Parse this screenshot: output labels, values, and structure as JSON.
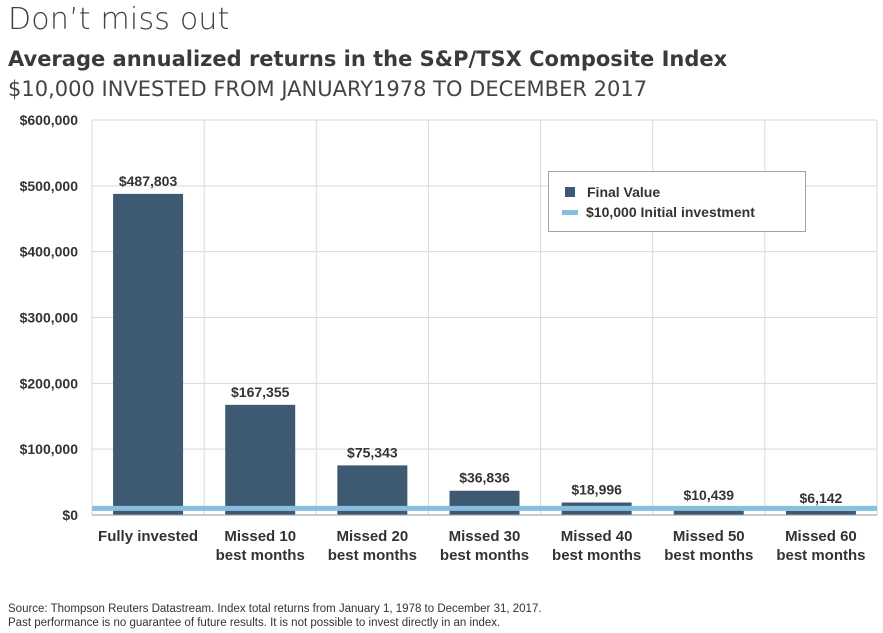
{
  "header": {
    "heading": "Don’t miss out",
    "title": "Average annualized returns in the S&P/TSX Composite Index",
    "subtitle": "$10,000 INVESTED FROM JANUARY1978 TO DECEMBER 2017"
  },
  "legend": {
    "final_value": "Final Value",
    "initial_investment": "$10,000 Initial investment"
  },
  "footnotes": {
    "line1": "Source: Thompson Reuters Datastream. Index total returns from January 1, 1978 to December 31, 2017.",
    "line2": "Past performance is no guarantee of future results. It is not possible to invest directly in an index."
  },
  "colors": {
    "bar": "#3e5a72",
    "initial_line": "#86bfe0",
    "grid": "#d9d9d9"
  },
  "chart_data": {
    "type": "bar",
    "categories": [
      [
        "Fully invested"
      ],
      [
        "Missed 10",
        "best months"
      ],
      [
        "Missed 20",
        "best months"
      ],
      [
        "Missed 30",
        "best months"
      ],
      [
        "Missed 40",
        "best months"
      ],
      [
        "Missed 50",
        "best months"
      ],
      [
        "Missed 60",
        "best months"
      ]
    ],
    "values": [
      487803,
      167355,
      75343,
      36836,
      18996,
      10439,
      6142
    ],
    "value_labels": [
      "$487,803",
      "$167,355",
      "$75,343",
      "$36,836",
      "$18,996",
      "$10,439",
      "$6,142"
    ],
    "reference_line": {
      "name": "$10,000 Initial investment",
      "value": 10000
    },
    "ylim": [
      0,
      600000
    ],
    "yticks": [
      0,
      100000,
      200000,
      300000,
      400000,
      500000,
      600000
    ],
    "ytick_labels": [
      "$0",
      "$100,000",
      "$200,000",
      "$300,000",
      "$400,000",
      "$500,000",
      "$600,000"
    ],
    "grid": true,
    "legend_position": "top-right"
  }
}
